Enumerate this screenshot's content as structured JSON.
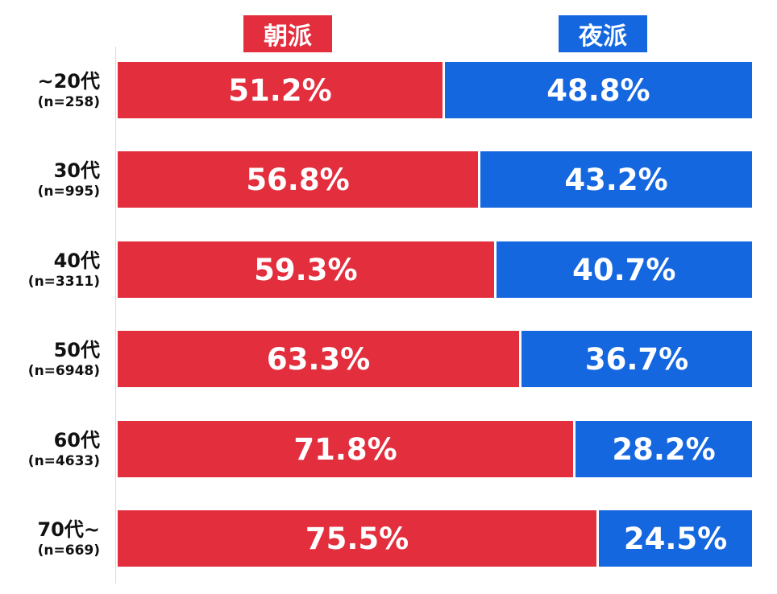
{
  "legend": {
    "morning": {
      "label": "朝派",
      "color": "#e22e3d"
    },
    "night": {
      "label": "夜派",
      "color": "#1567e0"
    }
  },
  "chart_data": {
    "type": "bar",
    "stacked": true,
    "orientation": "horizontal",
    "categories": [
      "~20代",
      "30代",
      "40代",
      "50代",
      "60代",
      "70代~"
    ],
    "sample_sizes": [
      "(n=258)",
      "(n=995)",
      "(n=3311)",
      "(n=6948)",
      "(n=4633)",
      "(n=669)"
    ],
    "series": [
      {
        "name": "朝派",
        "color": "#e22e3d",
        "values": [
          51.2,
          56.8,
          59.3,
          63.3,
          71.8,
          75.5
        ],
        "labels": [
          "51.2%",
          "56.8%",
          "59.3%",
          "63.3%",
          "71.8%",
          "75.5%"
        ]
      },
      {
        "name": "夜派",
        "color": "#1567e0",
        "values": [
          48.8,
          43.2,
          40.7,
          36.7,
          28.2,
          24.5
        ],
        "labels": [
          "48.8%",
          "43.2%",
          "40.7%",
          "36.7%",
          "28.2%",
          "24.5%"
        ]
      }
    ],
    "xlim": [
      0,
      100
    ],
    "grid": false,
    "legend_position": "top"
  }
}
